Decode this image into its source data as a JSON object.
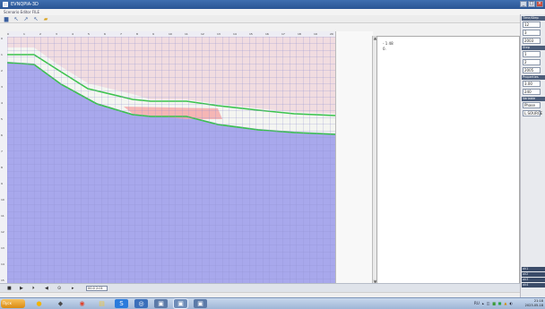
{
  "window": {
    "title": "EVNQPIA-3D",
    "menu": "Scenario Editor FILE"
  },
  "toolbar": [
    {
      "name": "tool-save-icon",
      "glyph": "▆"
    },
    {
      "name": "tool-pointer-icon",
      "glyph": "↖"
    },
    {
      "name": "tool-select-icon",
      "glyph": "↗"
    },
    {
      "name": "tool-arrow-icon",
      "glyph": "↖"
    },
    {
      "name": "tool-folder-icon",
      "glyph": "▰"
    }
  ],
  "ruler_x": [
    "0",
    "1",
    "2",
    "3",
    "4",
    "5",
    "6",
    "7",
    "8",
    "9",
    "10",
    "11",
    "12",
    "13",
    "14",
    "15",
    "16",
    "17",
    "18",
    "19",
    "20"
  ],
  "ruler_y": [
    "0",
    "1",
    "2",
    "3",
    "4",
    "5",
    "6",
    "7",
    "8",
    "9",
    "10",
    "11",
    "12",
    "13",
    "14",
    "15"
  ],
  "info": {
    "line1": "- 1 48",
    "line2": "0."
  },
  "side_panel": [
    {
      "header": "Time/Step",
      "value": "12"
    },
    {
      "header": "",
      "value": "3"
    },
    {
      "header": "",
      "value": "2003"
    },
    {
      "header": "Step",
      "value": "1"
    },
    {
      "header": "",
      "value": "2"
    },
    {
      "header": "",
      "value": "2005"
    },
    {
      "header": "Properties",
      "value": "3.00"
    },
    {
      "header": "",
      "value": "240"
    },
    {
      "header": "Variable",
      "value": "Phase"
    },
    {
      "header": "",
      "value": "L.SOURCE"
    }
  ],
  "side_bottom": [
    "ok1",
    "ok2",
    "ok3",
    "ok4"
  ],
  "playback": {
    "time": "00:0 2:01"
  },
  "taskbar": {
    "start": "Пуск",
    "tray_lang": "RU",
    "clock_time": "21:18",
    "clock_date": "2023-05-18"
  },
  "colors": {
    "sky": "#f1dce0",
    "grid": "#9c9cd8",
    "water": "#a8a8ec",
    "sand": "#f4f5f1",
    "green": "#39c44a",
    "pink": "#f5aaaa"
  }
}
